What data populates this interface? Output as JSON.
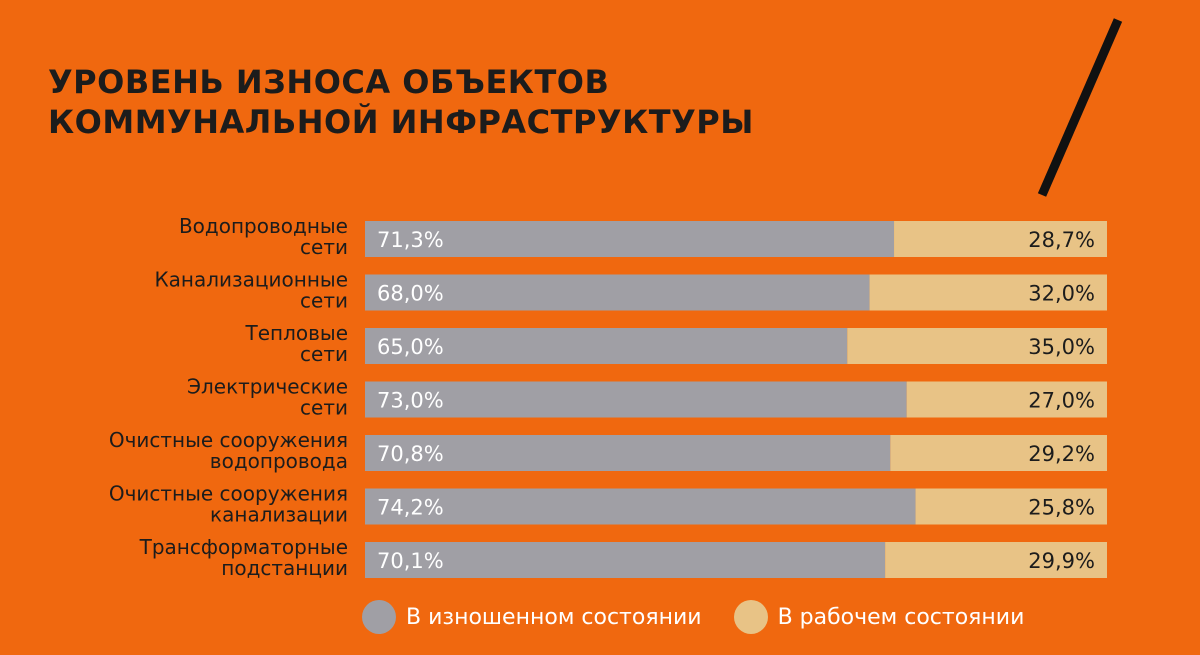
{
  "title_lines": [
    "УРОВЕНЬ ИЗНОСА ОБЪЕКТОВ",
    "КОММУНАЛЬНОЙ ИНФРАСТРУКТУРЫ"
  ],
  "colors": {
    "background": "#F0680F",
    "worn": "#A09FA5",
    "working": "#E8C386",
    "slash": "#111111"
  },
  "chart_data": {
    "type": "bar",
    "stacked": true,
    "orientation": "horizontal",
    "categories": [
      [
        "Водопроводные",
        "сети"
      ],
      [
        "Канализационные",
        "сети"
      ],
      [
        "Тепловые",
        "сети"
      ],
      [
        "Электрические",
        "сети"
      ],
      [
        "Очистные сооружения",
        "водопровода"
      ],
      [
        "Очистные сооружения",
        "канализации"
      ],
      [
        "Трансформаторные",
        "подстанции"
      ]
    ],
    "series": [
      {
        "name": "В изношенном состоянии",
        "values": [
          71.3,
          68.0,
          65.0,
          73.0,
          70.8,
          74.2,
          70.1
        ],
        "labels": [
          "71,3%",
          "68,0%",
          "65,0%",
          "73,0%",
          "70,8%",
          "74,2%",
          "70,1%"
        ]
      },
      {
        "name": "В рабочем состоянии",
        "values": [
          28.7,
          32.0,
          35.0,
          27.0,
          29.2,
          25.8,
          29.9
        ],
        "labels": [
          "28,7%",
          "32,0%",
          "35,0%",
          "27,0%",
          "29,2%",
          "25,8%",
          "29,9%"
        ]
      }
    ],
    "xlim": [
      0,
      100
    ],
    "legend_position": "bottom"
  },
  "legend": {
    "worn_label": "В изношенном состоянии",
    "working_label": "В рабочем состоянии"
  }
}
